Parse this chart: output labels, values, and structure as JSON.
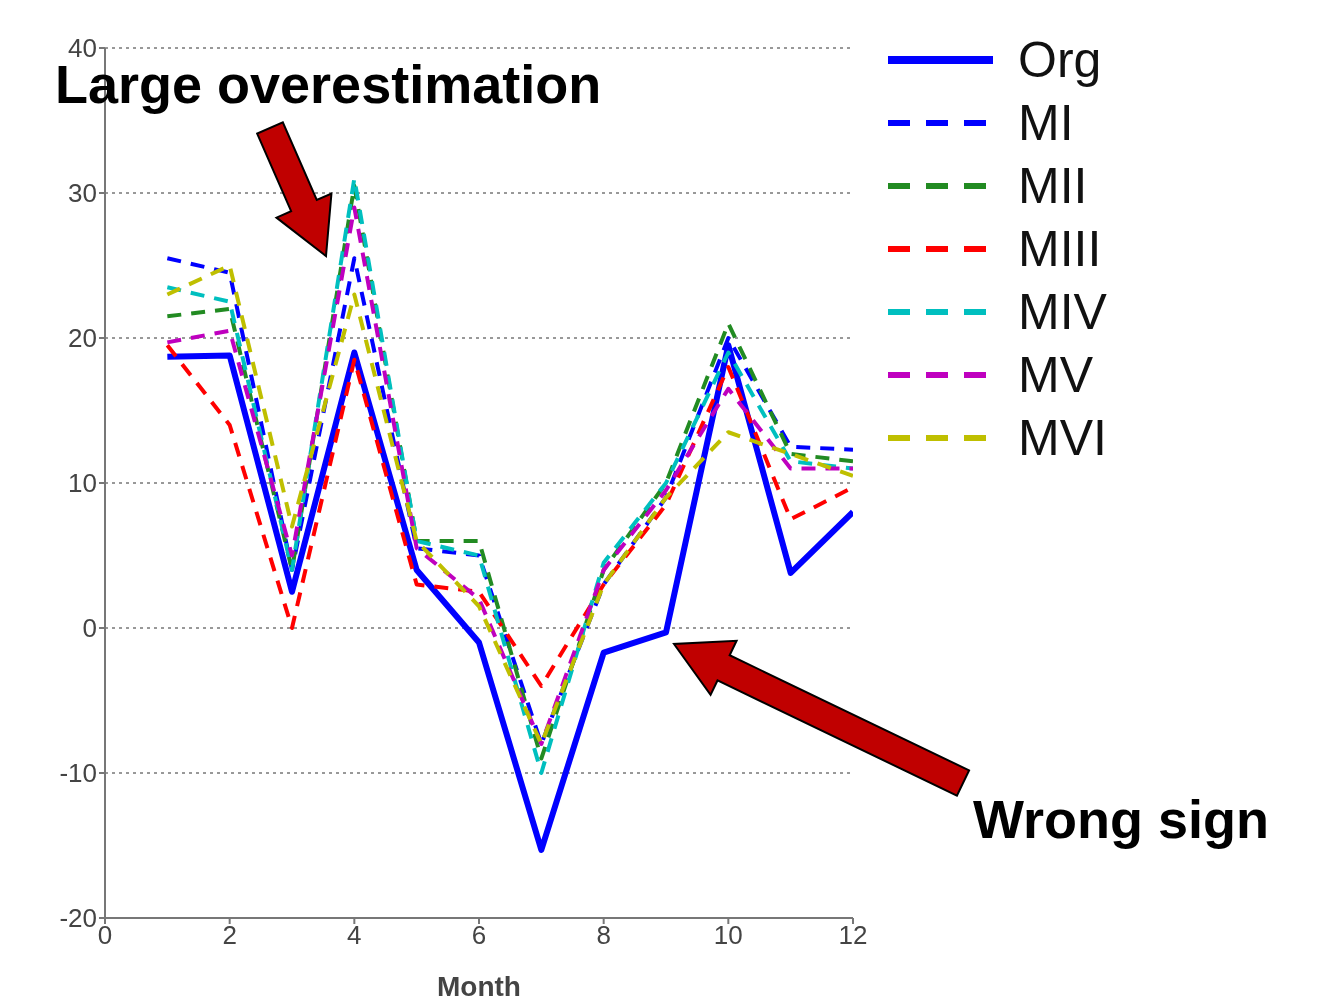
{
  "chart_data": {
    "type": "line",
    "xlabel": "Month",
    "x": [
      1,
      2,
      3,
      4,
      5,
      6,
      7,
      8,
      9,
      10,
      11,
      12
    ],
    "series": [
      {
        "name": "Org",
        "color": "#0000ff",
        "line_style": "solid",
        "values": [
          18.7,
          18.8,
          2.5,
          19,
          4,
          -1,
          -15.3,
          -1.7,
          -0.3,
          19.5,
          3.8,
          8
        ]
      },
      {
        "name": "MI",
        "color": "#0000ff",
        "line_style": "dashed",
        "values": [
          25.5,
          24.5,
          4,
          25.5,
          5.5,
          5,
          -8,
          3,
          9,
          20,
          12.5,
          12.3
        ]
      },
      {
        "name": "MII",
        "color": "#228b22",
        "line_style": "dashed",
        "values": [
          21.5,
          22,
          4,
          30.5,
          6,
          6,
          -9,
          4,
          10,
          21,
          12,
          11.5
        ]
      },
      {
        "name": "MIII",
        "color": "#ff0000",
        "line_style": "dashed",
        "values": [
          19.5,
          14,
          0,
          18.5,
          3,
          2.5,
          -4,
          3,
          8.5,
          18,
          7.5,
          9.7
        ]
      },
      {
        "name": "MIV",
        "color": "#00bfbf",
        "line_style": "dashed",
        "values": [
          23.5,
          22.5,
          4,
          31,
          6,
          5,
          -10,
          4.5,
          10,
          19,
          11.5,
          11
        ]
      },
      {
        "name": "MV",
        "color": "#bf00bf",
        "line_style": "dashed",
        "values": [
          19.7,
          20.5,
          5,
          29,
          5.5,
          2,
          -8,
          4,
          9.5,
          16.5,
          11,
          11
        ]
      },
      {
        "name": "MVI",
        "color": "#bfbf00",
        "line_style": "dashed",
        "values": [
          23,
          25,
          7,
          23,
          6,
          1.5,
          -8,
          3,
          9,
          13.5,
          12,
          10.5
        ]
      }
    ],
    "xlim": [
      0,
      12
    ],
    "xticks": [
      0,
      2,
      4,
      6,
      8,
      10,
      12
    ],
    "ylim": [
      -20,
      40
    ],
    "yticks": [
      -20,
      -10,
      0,
      10,
      20,
      30,
      40
    ],
    "grid": "y",
    "legend": "top right",
    "marker": "none",
    "annotations": [
      "Large overestimation",
      "Wrong sign"
    ]
  }
}
